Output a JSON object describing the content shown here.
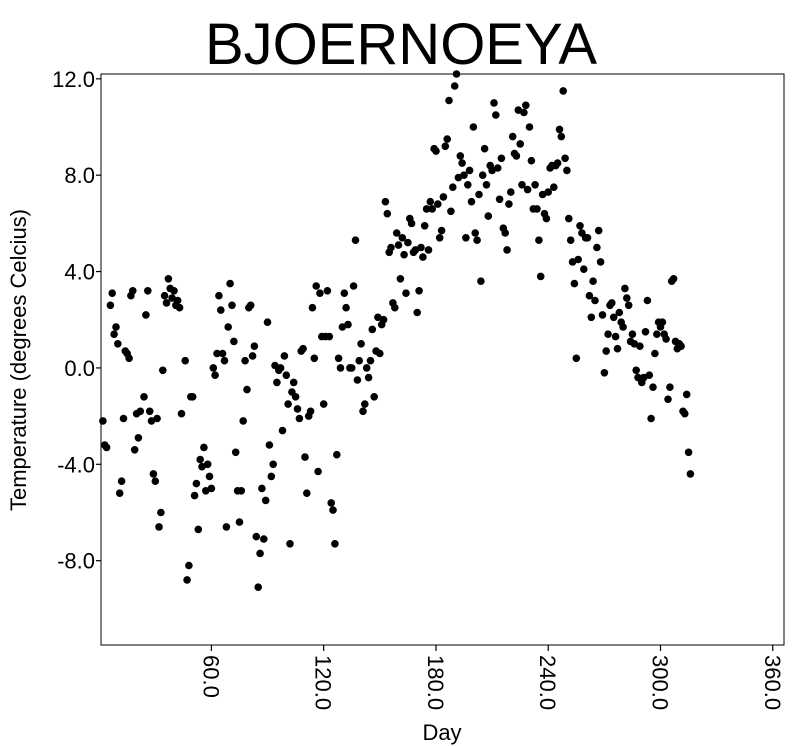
{
  "chart_data": {
    "type": "scatter",
    "title": "BJOERNOEYA",
    "xlabel": "Day",
    "ylabel": "Temperature (degrees Celcius)",
    "xlim": [
      1,
      366
    ],
    "ylim": [
      -11.5,
      12.2
    ],
    "x_ticks": [
      60,
      120,
      180,
      240,
      300,
      360
    ],
    "x_tick_labels": [
      "60.0",
      "120.0",
      "180.0",
      "240.0",
      "300.0",
      "360.0"
    ],
    "y_ticks": [
      12,
      8,
      4,
      0,
      -4,
      -8
    ],
    "y_tick_labels": [
      "12.0",
      "8.0",
      "4.0",
      "0.0",
      "-4.0",
      "-8.0"
    ],
    "grid": false,
    "legend": "none",
    "marker_color": "#000000",
    "points": [
      [
        2,
        -2.2
      ],
      [
        3,
        -3.2
      ],
      [
        4,
        -3.3
      ],
      [
        6,
        2.6
      ],
      [
        7,
        3.1
      ],
      [
        8,
        1.4
      ],
      [
        9,
        1.7
      ],
      [
        10,
        1.0
      ],
      [
        11,
        -5.2
      ],
      [
        12,
        -4.7
      ],
      [
        13,
        -2.1
      ],
      [
        14,
        0.7
      ],
      [
        15,
        0.6
      ],
      [
        16,
        0.4
      ],
      [
        17,
        3.0
      ],
      [
        18,
        3.2
      ],
      [
        19,
        -3.4
      ],
      [
        20,
        -1.9
      ],
      [
        21,
        -2.9
      ],
      [
        22,
        -1.8
      ],
      [
        24,
        -1.2
      ],
      [
        25,
        2.2
      ],
      [
        26,
        3.2
      ],
      [
        27,
        -1.8
      ],
      [
        28,
        -2.2
      ],
      [
        29,
        -4.4
      ],
      [
        30,
        -4.7
      ],
      [
        31,
        -2.1
      ],
      [
        32,
        -6.6
      ],
      [
        33,
        -6.0
      ],
      [
        34,
        -0.1
      ],
      [
        35,
        3.0
      ],
      [
        36,
        2.7
      ],
      [
        37,
        3.7
      ],
      [
        38,
        3.3
      ],
      [
        39,
        2.9
      ],
      [
        40,
        3.2
      ],
      [
        41,
        2.6
      ],
      [
        42,
        2.8
      ],
      [
        43,
        2.5
      ],
      [
        44,
        -1.9
      ],
      [
        46,
        0.3
      ],
      [
        47,
        -8.8
      ],
      [
        48,
        -8.2
      ],
      [
        49,
        -1.2
      ],
      [
        50,
        -1.2
      ],
      [
        51,
        -5.3
      ],
      [
        52,
        -4.8
      ],
      [
        53,
        -6.7
      ],
      [
        54,
        -3.8
      ],
      [
        55,
        -4.1
      ],
      [
        56,
        -3.3
      ],
      [
        57,
        -5.1
      ],
      [
        58,
        -4.0
      ],
      [
        59,
        -4.5
      ],
      [
        60,
        -5.0
      ],
      [
        61,
        0.0
      ],
      [
        62,
        -0.3
      ],
      [
        63,
        0.6
      ],
      [
        64,
        3.0
      ],
      [
        65,
        2.4
      ],
      [
        66,
        0.6
      ],
      [
        67,
        0.3
      ],
      [
        68,
        -6.6
      ],
      [
        69,
        1.7
      ],
      [
        70,
        3.5
      ],
      [
        71,
        2.6
      ],
      [
        72,
        1.1
      ],
      [
        73,
        -3.5
      ],
      [
        74,
        -5.1
      ],
      [
        75,
        -6.4
      ],
      [
        76,
        -5.1
      ],
      [
        77,
        -2.2
      ],
      [
        78,
        0.3
      ],
      [
        79,
        -0.9
      ],
      [
        80,
        2.5
      ],
      [
        81,
        2.6
      ],
      [
        82,
        0.5
      ],
      [
        83,
        0.9
      ],
      [
        84,
        -7.0
      ],
      [
        85,
        -9.1
      ],
      [
        86,
        -7.7
      ],
      [
        87,
        -5.0
      ],
      [
        88,
        -7.1
      ],
      [
        89,
        -5.5
      ],
      [
        90,
        1.9
      ],
      [
        91,
        -3.2
      ],
      [
        92,
        -4.5
      ],
      [
        93,
        -4.0
      ],
      [
        94,
        0.1
      ],
      [
        95,
        -0.6
      ],
      [
        96,
        -0.1
      ],
      [
        97,
        0.0
      ],
      [
        98,
        -2.6
      ],
      [
        99,
        0.5
      ],
      [
        100,
        -0.3
      ],
      [
        101,
        -1.5
      ],
      [
        102,
        -7.3
      ],
      [
        103,
        -1.0
      ],
      [
        104,
        -0.6
      ],
      [
        105,
        -1.2
      ],
      [
        106,
        -1.7
      ],
      [
        107,
        -2.1
      ],
      [
        108,
        0.7
      ],
      [
        109,
        0.8
      ],
      [
        110,
        -3.7
      ],
      [
        111,
        -5.2
      ],
      [
        112,
        -2.0
      ],
      [
        113,
        -1.8
      ],
      [
        114,
        2.5
      ],
      [
        115,
        0.4
      ],
      [
        116,
        3.4
      ],
      [
        117,
        -4.3
      ],
      [
        118,
        3.1
      ],
      [
        119,
        1.3
      ],
      [
        120,
        -1.5
      ],
      [
        121,
        1.3
      ],
      [
        122,
        3.2
      ],
      [
        123,
        1.3
      ],
      [
        124,
        -5.6
      ],
      [
        125,
        -5.9
      ],
      [
        126,
        -7.3
      ],
      [
        127,
        -3.6
      ],
      [
        128,
        0.4
      ],
      [
        129,
        0.0
      ],
      [
        130,
        1.7
      ],
      [
        131,
        3.1
      ],
      [
        132,
        2.5
      ],
      [
        133,
        1.8
      ],
      [
        134,
        0.0
      ],
      [
        135,
        0.0
      ],
      [
        136,
        3.4
      ],
      [
        137,
        5.3
      ],
      [
        138,
        -0.5
      ],
      [
        139,
        0.3
      ],
      [
        140,
        1.0
      ],
      [
        141,
        -1.8
      ],
      [
        142,
        -1.5
      ],
      [
        143,
        0.0
      ],
      [
        144,
        -0.4
      ],
      [
        145,
        0.3
      ],
      [
        146,
        1.6
      ],
      [
        147,
        -1.2
      ],
      [
        148,
        0.7
      ],
      [
        149,
        2.1
      ],
      [
        150,
        0.6
      ],
      [
        151,
        1.8
      ],
      [
        152,
        2.0
      ],
      [
        153,
        6.9
      ],
      [
        154,
        6.4
      ],
      [
        155,
        4.8
      ],
      [
        156,
        5.0
      ],
      [
        157,
        2.7
      ],
      [
        158,
        2.5
      ],
      [
        159,
        5.6
      ],
      [
        160,
        5.1
      ],
      [
        161,
        3.7
      ],
      [
        162,
        5.4
      ],
      [
        163,
        4.7
      ],
      [
        164,
        3.1
      ],
      [
        165,
        5.2
      ],
      [
        166,
        6.2
      ],
      [
        167,
        6.0
      ],
      [
        168,
        4.8
      ],
      [
        169,
        4.9
      ],
      [
        170,
        2.3
      ],
      [
        171,
        3.2
      ],
      [
        172,
        5.0
      ],
      [
        173,
        4.6
      ],
      [
        174,
        5.9
      ],
      [
        175,
        6.6
      ],
      [
        176,
        4.9
      ],
      [
        177,
        6.9
      ],
      [
        178,
        6.6
      ],
      [
        179,
        9.1
      ],
      [
        180,
        9.0
      ],
      [
        181,
        6.8
      ],
      [
        182,
        5.4
      ],
      [
        183,
        5.7
      ],
      [
        184,
        7.1
      ],
      [
        185,
        9.2
      ],
      [
        186,
        9.5
      ],
      [
        187,
        11.1
      ],
      [
        188,
        6.5
      ],
      [
        189,
        7.5
      ],
      [
        190,
        11.7
      ],
      [
        191,
        12.2
      ],
      [
        192,
        7.9
      ],
      [
        193,
        8.8
      ],
      [
        194,
        8.5
      ],
      [
        195,
        8.0
      ],
      [
        196,
        5.4
      ],
      [
        197,
        7.6
      ],
      [
        198,
        8.2
      ],
      [
        199,
        6.9
      ],
      [
        200,
        10.0
      ],
      [
        201,
        5.6
      ],
      [
        202,
        5.3
      ],
      [
        203,
        7.2
      ],
      [
        204,
        3.6
      ],
      [
        205,
        8.0
      ],
      [
        206,
        9.1
      ],
      [
        207,
        7.6
      ],
      [
        208,
        6.3
      ],
      [
        209,
        8.4
      ],
      [
        210,
        8.2
      ],
      [
        211,
        11.0
      ],
      [
        212,
        10.5
      ],
      [
        213,
        8.3
      ],
      [
        214,
        7.0
      ],
      [
        215,
        8.7
      ],
      [
        216,
        5.8
      ],
      [
        217,
        5.6
      ],
      [
        218,
        4.9
      ],
      [
        219,
        6.8
      ],
      [
        220,
        7.3
      ],
      [
        221,
        9.6
      ],
      [
        222,
        8.9
      ],
      [
        223,
        8.8
      ],
      [
        224,
        10.7
      ],
      [
        225,
        9.3
      ],
      [
        226,
        7.6
      ],
      [
        227,
        10.6
      ],
      [
        228,
        10.9
      ],
      [
        229,
        7.4
      ],
      [
        230,
        10.0
      ],
      [
        231,
        8.6
      ],
      [
        232,
        6.6
      ],
      [
        233,
        7.6
      ],
      [
        234,
        6.6
      ],
      [
        235,
        5.3
      ],
      [
        236,
        3.8
      ],
      [
        237,
        7.2
      ],
      [
        238,
        6.4
      ],
      [
        239,
        6.2
      ],
      [
        240,
        7.3
      ],
      [
        241,
        8.3
      ],
      [
        242,
        8.4
      ],
      [
        243,
        7.5
      ],
      [
        244,
        8.4
      ],
      [
        245,
        8.5
      ],
      [
        246,
        9.9
      ],
      [
        247,
        9.6
      ],
      [
        248,
        11.5
      ],
      [
        249,
        8.7
      ],
      [
        250,
        8.2
      ],
      [
        251,
        6.2
      ],
      [
        252,
        5.3
      ],
      [
        253,
        4.4
      ],
      [
        254,
        3.5
      ],
      [
        255,
        0.4
      ],
      [
        256,
        4.5
      ],
      [
        257,
        5.9
      ],
      [
        258,
        5.6
      ],
      [
        259,
        4.1
      ],
      [
        260,
        5.4
      ],
      [
        261,
        5.4
      ],
      [
        262,
        3.0
      ],
      [
        263,
        2.1
      ],
      [
        264,
        3.6
      ],
      [
        265,
        2.8
      ],
      [
        266,
        5.0
      ],
      [
        267,
        5.7
      ],
      [
        268,
        4.4
      ],
      [
        269,
        2.2
      ],
      [
        270,
        -0.2
      ],
      [
        271,
        0.7
      ],
      [
        272,
        1.4
      ],
      [
        273,
        2.6
      ],
      [
        274,
        2.7
      ],
      [
        275,
        2.1
      ],
      [
        276,
        1.3
      ],
      [
        277,
        0.8
      ],
      [
        278,
        2.3
      ],
      [
        279,
        1.9
      ],
      [
        280,
        1.7
      ],
      [
        281,
        3.3
      ],
      [
        282,
        2.9
      ],
      [
        283,
        2.6
      ],
      [
        284,
        1.1
      ],
      [
        285,
        1.4
      ],
      [
        286,
        1.0
      ],
      [
        287,
        -0.1
      ],
      [
        288,
        -0.4
      ],
      [
        289,
        0.9
      ],
      [
        290,
        -0.6
      ],
      [
        291,
        -0.4
      ],
      [
        292,
        1.5
      ],
      [
        293,
        2.8
      ],
      [
        294,
        -0.3
      ],
      [
        295,
        -2.1
      ],
      [
        296,
        -0.8
      ],
      [
        297,
        0.6
      ],
      [
        298,
        1.4
      ],
      [
        299,
        1.9
      ],
      [
        300,
        1.7
      ],
      [
        301,
        1.9
      ],
      [
        302,
        1.4
      ],
      [
        303,
        1.2
      ],
      [
        304,
        -1.3
      ],
      [
        305,
        -0.8
      ],
      [
        306,
        3.6
      ],
      [
        307,
        3.7
      ],
      [
        308,
        1.1
      ],
      [
        309,
        0.8
      ],
      [
        310,
        1.0
      ],
      [
        311,
        0.9
      ],
      [
        312,
        -1.8
      ],
      [
        313,
        -1.9
      ],
      [
        314,
        -1.1
      ],
      [
        315,
        -3.5
      ],
      [
        316,
        -4.4
      ]
    ]
  }
}
